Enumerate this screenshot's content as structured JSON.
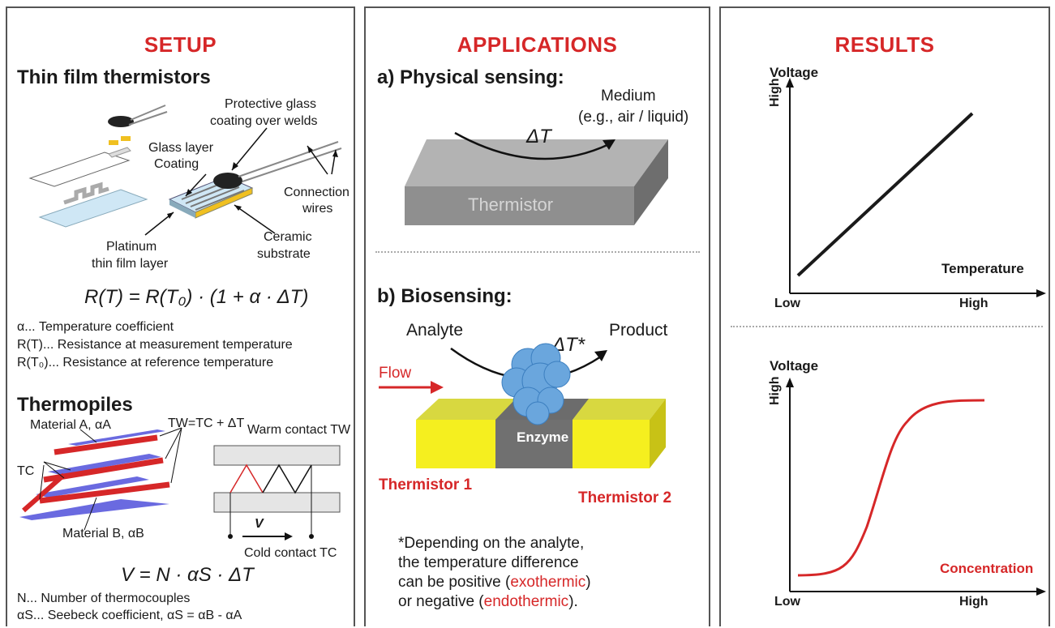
{
  "setup": {
    "title": "SETUP",
    "thin_film": {
      "heading": "Thin film thermistors",
      "labels": {
        "protective": "Protective glass",
        "protective2": "coating over welds",
        "glass": "Glass layer",
        "coating": "Coating",
        "connection": "Connection",
        "wires": "wires",
        "ceramic": "Ceramic",
        "substrate": "substrate",
        "platinum": "Platinum",
        "thin_layer": "thin film layer"
      },
      "equation": "R(T) = R(T₀) · (1 + α · ΔT)",
      "legend": [
        "α... Temperature coefficient",
        "R(T)... Resistance at measurement temperature",
        "R(T₀)... Resistance at reference temperature"
      ]
    },
    "thermopiles": {
      "heading": "Thermopiles",
      "material_a": "Material A, αA",
      "material_b": "Material B, αB",
      "tc": "TC",
      "tw_eq": "TW=TC + ΔT",
      "warm": "Warm contact TW",
      "cold": "Cold contact TC",
      "v": "V",
      "equation": "V = N · αS · ΔT",
      "legend": [
        "N... Number of thermocouples",
        "αS... Seebeck coefficient, αS = αB - αA"
      ]
    }
  },
  "applications": {
    "title": "APPLICATIONS",
    "physical": {
      "heading": "a) Physical sensing:",
      "medium": "Medium",
      "medium2": "(e.g., air / liquid)",
      "delta": "ΔT",
      "block": "Thermistor"
    },
    "bio": {
      "heading": "b) Biosensing:",
      "analyte": "Analyte",
      "delta": "ΔT*",
      "product": "Product",
      "flow": "Flow",
      "enzyme": "Enzyme",
      "t1": "Thermistor 1",
      "t2": "Thermistor 2"
    },
    "note": {
      "line1": "*Depending on the analyte,",
      "line2": "the temperature difference",
      "line3a": "can be positive (",
      "line3b": "exothermic",
      "line3c": ")",
      "line4a": "or negative (",
      "line4b": "endothermic",
      "line4c": ")."
    }
  },
  "results": {
    "title": "RESULTS",
    "chart1": {
      "ylabel": "Voltage",
      "high_y": "High",
      "xlabel": "Temperature",
      "low": "Low",
      "high_x": "High",
      "color": "#1a1a1a"
    },
    "chart2": {
      "ylabel": "Voltage",
      "high_y": "High",
      "xlabel": "Concentration",
      "low": "Low",
      "high_x": "High",
      "color": "#d62728"
    }
  },
  "colors": {
    "accent": "#d62728",
    "border": "#555555"
  }
}
